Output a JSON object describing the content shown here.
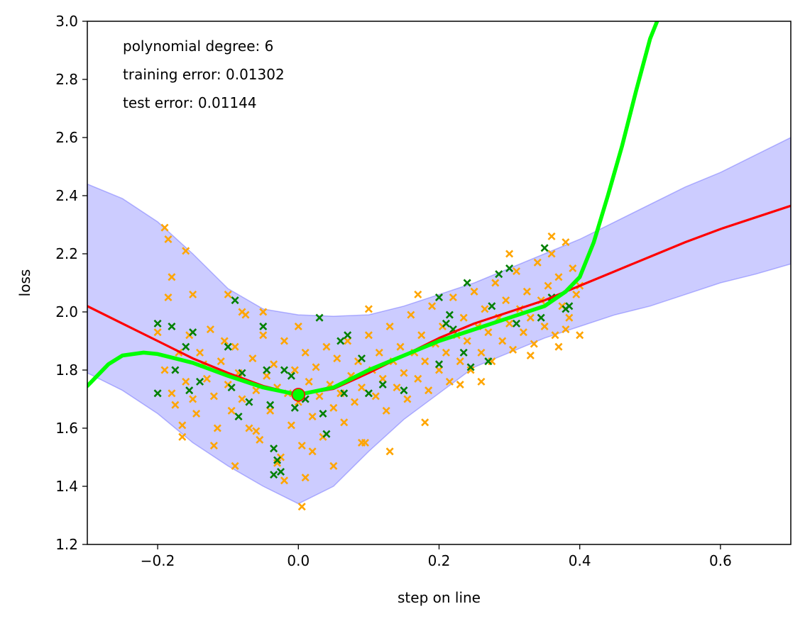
{
  "chart_data": {
    "type": "scatter",
    "xlabel": "step on line",
    "ylabel": "loss",
    "xlim": [
      -0.3,
      0.7
    ],
    "ylim": [
      1.2,
      3.0
    ],
    "xticks": [
      -0.2,
      0.0,
      0.2,
      0.4,
      0.6
    ],
    "xtick_labels": [
      "−0.2",
      "0.0",
      "0.2",
      "0.4",
      "0.6"
    ],
    "yticks": [
      1.2,
      1.4,
      1.6,
      1.8,
      2.0,
      2.2,
      2.4,
      2.6,
      2.8,
      3.0
    ],
    "ytick_labels": [
      "1.2",
      "1.4",
      "1.6",
      "1.8",
      "2.0",
      "2.2",
      "2.4",
      "2.6",
      "2.8",
      "3.0"
    ],
    "grid": false,
    "annotations": [
      "polynomial degree: 6",
      "training error: 0.01302",
      "test error: 0.01144"
    ],
    "colors": {
      "band": "#0000ff",
      "mean_line": "#ff0000",
      "poly_line": "#00ff00",
      "train_points": "#ffa500",
      "test_points": "#008000"
    },
    "band": {
      "x": [
        -0.3,
        -0.25,
        -0.2,
        -0.15,
        -0.1,
        -0.05,
        0.0,
        0.05,
        0.1,
        0.15,
        0.2,
        0.25,
        0.3,
        0.35,
        0.4,
        0.45,
        0.5,
        0.55,
        0.6,
        0.65,
        0.7
      ],
      "upper": [
        2.44,
        2.39,
        2.31,
        2.2,
        2.08,
        2.01,
        1.99,
        1.985,
        1.99,
        2.02,
        2.06,
        2.1,
        2.15,
        2.2,
        2.25,
        2.31,
        2.37,
        2.43,
        2.48,
        2.54,
        2.6
      ],
      "lower": [
        1.79,
        1.73,
        1.65,
        1.55,
        1.47,
        1.4,
        1.34,
        1.4,
        1.52,
        1.63,
        1.72,
        1.81,
        1.86,
        1.91,
        1.95,
        1.99,
        2.02,
        2.06,
        2.1,
        2.13,
        2.165
      ]
    },
    "mean_line": {
      "x": [
        -0.3,
        -0.25,
        -0.2,
        -0.15,
        -0.1,
        -0.05,
        0.0,
        0.05,
        0.1,
        0.15,
        0.2,
        0.25,
        0.3,
        0.35,
        0.4,
        0.45,
        0.5,
        0.55,
        0.6,
        0.65,
        0.7
      ],
      "y": [
        2.02,
        1.96,
        1.9,
        1.84,
        1.79,
        1.745,
        1.715,
        1.735,
        1.79,
        1.85,
        1.91,
        1.96,
        2.0,
        2.04,
        2.09,
        2.14,
        2.19,
        2.24,
        2.285,
        2.325,
        2.365
      ]
    },
    "poly_line": {
      "x": [
        -0.3,
        -0.27,
        -0.25,
        -0.22,
        -0.2,
        -0.15,
        -0.1,
        -0.05,
        0.0,
        0.05,
        0.1,
        0.15,
        0.2,
        0.25,
        0.3,
        0.35,
        0.38,
        0.4,
        0.42,
        0.44,
        0.46,
        0.48,
        0.5,
        0.51
      ],
      "y": [
        1.745,
        1.82,
        1.85,
        1.86,
        1.855,
        1.825,
        1.78,
        1.74,
        1.715,
        1.74,
        1.8,
        1.85,
        1.9,
        1.94,
        1.98,
        2.02,
        2.07,
        2.12,
        2.24,
        2.4,
        2.57,
        2.76,
        2.94,
        3.0
      ]
    },
    "min_point": {
      "x": 0.0,
      "y": 1.715
    },
    "train_points": [
      [
        -0.2,
        1.93
      ],
      [
        -0.19,
        1.8
      ],
      [
        -0.18,
        1.72
      ],
      [
        -0.175,
        1.68
      ],
      [
        -0.17,
        1.86
      ],
      [
        -0.165,
        1.61
      ],
      [
        -0.16,
        1.76
      ],
      [
        -0.155,
        1.92
      ],
      [
        -0.15,
        1.7
      ],
      [
        -0.145,
        1.65
      ],
      [
        -0.14,
        1.86
      ],
      [
        -0.135,
        1.82
      ],
      [
        -0.13,
        1.77
      ],
      [
        -0.125,
        1.94
      ],
      [
        -0.12,
        1.71
      ],
      [
        -0.115,
        1.6
      ],
      [
        -0.11,
        1.83
      ],
      [
        -0.105,
        1.9
      ],
      [
        -0.1,
        1.75
      ],
      [
        -0.095,
        1.66
      ],
      [
        -0.09,
        1.88
      ],
      [
        -0.085,
        1.79
      ],
      [
        -0.08,
        1.7
      ],
      [
        -0.075,
        1.99
      ],
      [
        -0.07,
        1.6
      ],
      [
        -0.065,
        1.84
      ],
      [
        -0.06,
        1.73
      ],
      [
        -0.055,
        1.56
      ],
      [
        -0.05,
        1.92
      ],
      [
        -0.045,
        1.78
      ],
      [
        -0.04,
        1.66
      ],
      [
        -0.035,
        1.82
      ],
      [
        -0.03,
        1.74
      ],
      [
        -0.025,
        1.5
      ],
      [
        -0.02,
        1.9
      ],
      [
        -0.015,
        1.72
      ],
      [
        -0.01,
        1.61
      ],
      [
        -0.005,
        1.8
      ],
      [
        0.0,
        1.69
      ],
      [
        0.005,
        1.54
      ],
      [
        0.01,
        1.86
      ],
      [
        0.015,
        1.76
      ],
      [
        0.02,
        1.64
      ],
      [
        0.025,
        1.81
      ],
      [
        0.03,
        1.71
      ],
      [
        0.035,
        1.57
      ],
      [
        0.04,
        1.88
      ],
      [
        0.045,
        1.75
      ],
      [
        0.05,
        1.67
      ],
      [
        0.055,
        1.84
      ],
      [
        0.06,
        1.72
      ],
      [
        0.065,
        1.62
      ],
      [
        0.07,
        1.9
      ],
      [
        0.075,
        1.78
      ],
      [
        0.08,
        1.69
      ],
      [
        0.085,
        1.83
      ],
      [
        0.09,
        1.74
      ],
      [
        0.095,
        1.55
      ],
      [
        0.1,
        1.92
      ],
      [
        0.105,
        1.8
      ],
      [
        0.11,
        1.71
      ],
      [
        0.115,
        1.86
      ],
      [
        0.12,
        1.77
      ],
      [
        0.125,
        1.66
      ],
      [
        0.13,
        1.95
      ],
      [
        0.135,
        1.83
      ],
      [
        0.14,
        1.74
      ],
      [
        0.145,
        1.88
      ],
      [
        0.15,
        1.79
      ],
      [
        0.155,
        1.7
      ],
      [
        0.16,
        1.99
      ],
      [
        0.165,
        1.86
      ],
      [
        0.17,
        1.77
      ],
      [
        0.175,
        1.92
      ],
      [
        0.18,
        1.83
      ],
      [
        0.185,
        1.73
      ],
      [
        0.19,
        2.02
      ],
      [
        0.195,
        1.89
      ],
      [
        0.2,
        1.8
      ],
      [
        0.205,
        1.95
      ],
      [
        0.21,
        1.86
      ],
      [
        0.215,
        1.76
      ],
      [
        0.22,
        2.05
      ],
      [
        0.225,
        1.92
      ],
      [
        0.23,
        1.83
      ],
      [
        0.235,
        1.98
      ],
      [
        0.24,
        1.9
      ],
      [
        0.245,
        1.8
      ],
      [
        0.25,
        2.07
      ],
      [
        0.255,
        1.95
      ],
      [
        0.26,
        1.86
      ],
      [
        0.265,
        2.01
      ],
      [
        0.27,
        1.93
      ],
      [
        0.275,
        1.83
      ],
      [
        0.28,
        2.1
      ],
      [
        0.285,
        1.98
      ],
      [
        0.29,
        1.9
      ],
      [
        0.295,
        2.04
      ],
      [
        0.3,
        1.96
      ],
      [
        0.305,
        1.87
      ],
      [
        0.31,
        2.14
      ],
      [
        0.315,
        2.01
      ],
      [
        0.32,
        1.93
      ],
      [
        0.325,
        2.07
      ],
      [
        0.33,
        1.98
      ],
      [
        0.335,
        1.89
      ],
      [
        0.34,
        2.17
      ],
      [
        0.345,
        2.04
      ],
      [
        0.35,
        1.95
      ],
      [
        0.355,
        2.09
      ],
      [
        0.36,
        2.2
      ],
      [
        0.365,
        1.92
      ],
      [
        0.37,
        2.12
      ],
      [
        0.375,
        2.02
      ],
      [
        0.38,
        2.24
      ],
      [
        0.385,
        1.98
      ],
      [
        0.39,
        2.15
      ],
      [
        0.395,
        2.06
      ],
      [
        0.4,
        2.09
      ],
      [
        -0.19,
        2.29
      ],
      [
        -0.185,
        2.25
      ],
      [
        -0.16,
        2.21
      ],
      [
        -0.15,
        2.06
      ],
      [
        -0.1,
        2.06
      ],
      [
        -0.08,
        2.0
      ],
      [
        -0.05,
        2.0
      ],
      [
        0.0,
        1.95
      ],
      [
        0.005,
        1.33
      ],
      [
        0.01,
        1.43
      ],
      [
        -0.02,
        1.42
      ],
      [
        -0.09,
        1.47
      ],
      [
        -0.03,
        1.48
      ],
      [
        0.13,
        1.52
      ],
      [
        0.05,
        1.47
      ],
      [
        0.18,
        1.62
      ],
      [
        0.09,
        1.55
      ],
      [
        -0.12,
        1.54
      ],
      [
        -0.165,
        1.57
      ],
      [
        0.3,
        2.2
      ],
      [
        0.36,
        2.26
      ],
      [
        0.38,
        1.94
      ],
      [
        0.37,
        1.88
      ],
      [
        0.33,
        1.85
      ],
      [
        0.26,
        1.76
      ],
      [
        0.23,
        1.75
      ],
      [
        0.4,
        1.92
      ],
      [
        0.17,
        2.06
      ],
      [
        0.1,
        2.01
      ],
      [
        -0.18,
        2.12
      ],
      [
        -0.185,
        2.05
      ],
      [
        -0.06,
        1.59
      ],
      [
        0.02,
        1.52
      ]
    ],
    "test_points": [
      [
        -0.2,
        1.96
      ],
      [
        -0.2,
        1.72
      ],
      [
        -0.18,
        1.95
      ],
      [
        -0.175,
        1.8
      ],
      [
        -0.16,
        1.88
      ],
      [
        -0.155,
        1.73
      ],
      [
        -0.15,
        1.93
      ],
      [
        -0.14,
        1.76
      ],
      [
        -0.1,
        1.88
      ],
      [
        -0.095,
        1.74
      ],
      [
        -0.09,
        2.04
      ],
      [
        -0.085,
        1.64
      ],
      [
        -0.08,
        1.79
      ],
      [
        -0.07,
        1.69
      ],
      [
        -0.05,
        1.95
      ],
      [
        -0.045,
        1.8
      ],
      [
        -0.04,
        1.68
      ],
      [
        -0.035,
        1.44
      ],
      [
        -0.03,
        1.49
      ],
      [
        -0.025,
        1.45
      ],
      [
        -0.02,
        1.8
      ],
      [
        -0.01,
        1.78
      ],
      [
        0.0,
        1.72
      ],
      [
        -0.005,
        1.67
      ],
      [
        0.03,
        1.98
      ],
      [
        0.035,
        1.65
      ],
      [
        0.04,
        1.58
      ],
      [
        0.06,
        1.9
      ],
      [
        0.065,
        1.72
      ],
      [
        0.07,
        1.92
      ],
      [
        0.09,
        1.84
      ],
      [
        0.1,
        1.72
      ],
      [
        0.12,
        1.75
      ],
      [
        0.15,
        1.73
      ],
      [
        0.2,
        1.82
      ],
      [
        0.2,
        2.05
      ],
      [
        0.21,
        1.96
      ],
      [
        0.215,
        1.99
      ],
      [
        0.22,
        1.94
      ],
      [
        0.235,
        1.86
      ],
      [
        0.24,
        2.1
      ],
      [
        0.245,
        1.81
      ],
      [
        0.27,
        1.83
      ],
      [
        0.275,
        2.02
      ],
      [
        0.285,
        2.13
      ],
      [
        0.3,
        2.15
      ],
      [
        0.31,
        1.96
      ],
      [
        0.345,
        1.98
      ],
      [
        0.35,
        2.22
      ],
      [
        0.36,
        2.05
      ],
      [
        0.38,
        2.01
      ],
      [
        0.385,
        2.02
      ],
      [
        -0.035,
        1.53
      ],
      [
        0.01,
        1.7
      ]
    ]
  }
}
